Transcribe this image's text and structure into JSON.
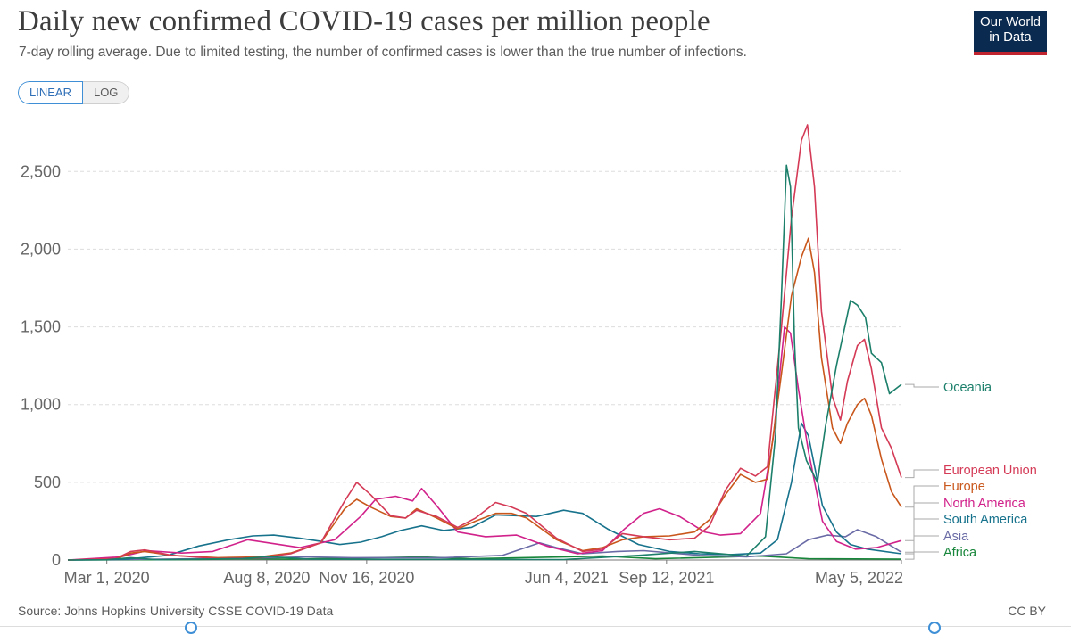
{
  "header": {
    "title": "Daily new confirmed COVID-19 cases per million people",
    "subtitle": "7-day rolling average. Due to limited testing, the number of confirmed cases is lower than the true number of infections."
  },
  "logo": {
    "line1": "Our World",
    "line2": "in Data"
  },
  "controls": {
    "linear_label": "LINEAR",
    "log_label": "LOG",
    "active": "LINEAR"
  },
  "footer": {
    "source": "Source: Johns Hopkins University CSSE COVID-19 Data",
    "license": "CC BY"
  },
  "colors": {
    "grid": "#dddddd",
    "axis": "#777777",
    "accent": "#3e8fd6"
  },
  "chart_data": {
    "type": "line",
    "x_type": "date",
    "xlim": [
      "2020-01-22",
      "2022-05-05"
    ],
    "ylim": [
      0,
      2800
    ],
    "yticks": [
      0,
      500,
      1000,
      1500,
      2000,
      2500
    ],
    "ytick_labels": [
      "0",
      "500",
      "1,000",
      "1,500",
      "2,000",
      "2,500"
    ],
    "xticks": [
      "2020-03-01",
      "2020-08-08",
      "2020-11-16",
      "2021-06-04",
      "2021-09-12",
      "2022-05-05"
    ],
    "xtick_labels": [
      "Mar 1, 2020",
      "Aug 8, 2020",
      "Nov 16, 2020",
      "Jun 4, 2021",
      "Sep 12, 2021",
      "May 5, 2022"
    ],
    "grid": true,
    "legend": "right-end-labels",
    "series": [
      {
        "name": "Oceania",
        "color": "#1b7f6a",
        "points": [
          [
            "2020-01-22",
            0
          ],
          [
            "2020-03-01",
            2
          ],
          [
            "2020-03-25",
            15
          ],
          [
            "2020-04-20",
            2
          ],
          [
            "2020-07-15",
            10
          ],
          [
            "2020-08-10",
            22
          ],
          [
            "2020-09-20",
            5
          ],
          [
            "2021-01-01",
            4
          ],
          [
            "2021-06-01",
            3
          ],
          [
            "2021-08-15",
            30
          ],
          [
            "2021-10-10",
            55
          ],
          [
            "2021-12-01",
            25
          ],
          [
            "2021-12-20",
            150
          ],
          [
            "2021-12-30",
            800
          ],
          [
            "2022-01-05",
            1700
          ],
          [
            "2022-01-10",
            2540
          ],
          [
            "2022-01-14",
            2400
          ],
          [
            "2022-01-18",
            1400
          ],
          [
            "2022-01-22",
            850
          ],
          [
            "2022-01-30",
            640
          ],
          [
            "2022-02-10",
            500
          ],
          [
            "2022-02-18",
            860
          ],
          [
            "2022-03-01",
            1250
          ],
          [
            "2022-03-10",
            1520
          ],
          [
            "2022-03-15",
            1670
          ],
          [
            "2022-03-22",
            1640
          ],
          [
            "2022-03-30",
            1560
          ],
          [
            "2022-04-05",
            1330
          ],
          [
            "2022-04-15",
            1270
          ],
          [
            "2022-04-23",
            1070
          ],
          [
            "2022-05-05",
            1130
          ]
        ]
      },
      {
        "name": "European Union",
        "color": "#d43a56",
        "points": [
          [
            "2020-01-22",
            0
          ],
          [
            "2020-03-10",
            10
          ],
          [
            "2020-03-25",
            55
          ],
          [
            "2020-04-08",
            65
          ],
          [
            "2020-05-05",
            30
          ],
          [
            "2020-06-20",
            10
          ],
          [
            "2020-08-01",
            15
          ],
          [
            "2020-09-01",
            40
          ],
          [
            "2020-10-01",
            110
          ],
          [
            "2020-10-25",
            380
          ],
          [
            "2020-11-06",
            500
          ],
          [
            "2020-11-20",
            420
          ],
          [
            "2020-12-10",
            285
          ],
          [
            "2020-12-25",
            270
          ],
          [
            "2021-01-05",
            320
          ],
          [
            "2021-01-25",
            280
          ],
          [
            "2021-02-15",
            210
          ],
          [
            "2021-03-05",
            270
          ],
          [
            "2021-03-25",
            370
          ],
          [
            "2021-04-10",
            340
          ],
          [
            "2021-04-25",
            300
          ],
          [
            "2021-05-25",
            140
          ],
          [
            "2021-06-20",
            55
          ],
          [
            "2021-07-10",
            70
          ],
          [
            "2021-07-30",
            170
          ],
          [
            "2021-08-20",
            150
          ],
          [
            "2021-09-15",
            130
          ],
          [
            "2021-10-10",
            140
          ],
          [
            "2021-10-25",
            220
          ],
          [
            "2021-11-10",
            450
          ],
          [
            "2021-11-25",
            590
          ],
          [
            "2021-12-10",
            540
          ],
          [
            "2021-12-22",
            600
          ],
          [
            "2022-01-05",
            1500
          ],
          [
            "2022-01-15",
            2200
          ],
          [
            "2022-01-25",
            2700
          ],
          [
            "2022-01-31",
            2800
          ],
          [
            "2022-02-07",
            2400
          ],
          [
            "2022-02-14",
            1600
          ],
          [
            "2022-02-25",
            1050
          ],
          [
            "2022-03-05",
            900
          ],
          [
            "2022-03-12",
            1150
          ],
          [
            "2022-03-22",
            1380
          ],
          [
            "2022-03-29",
            1420
          ],
          [
            "2022-04-05",
            1230
          ],
          [
            "2022-04-15",
            850
          ],
          [
            "2022-04-25",
            720
          ],
          [
            "2022-05-05",
            530
          ]
        ]
      },
      {
        "name": "Europe",
        "color": "#c9571c",
        "points": [
          [
            "2020-01-22",
            0
          ],
          [
            "2020-03-10",
            8
          ],
          [
            "2020-03-25",
            45
          ],
          [
            "2020-04-08",
            55
          ],
          [
            "2020-05-05",
            30
          ],
          [
            "2020-06-20",
            15
          ],
          [
            "2020-08-01",
            20
          ],
          [
            "2020-09-01",
            45
          ],
          [
            "2020-10-01",
            110
          ],
          [
            "2020-10-25",
            330
          ],
          [
            "2020-11-06",
            390
          ],
          [
            "2020-11-20",
            340
          ],
          [
            "2020-12-10",
            280
          ],
          [
            "2020-12-25",
            270
          ],
          [
            "2021-01-05",
            330
          ],
          [
            "2021-01-25",
            270
          ],
          [
            "2021-02-15",
            200
          ],
          [
            "2021-03-05",
            250
          ],
          [
            "2021-03-25",
            300
          ],
          [
            "2021-04-10",
            300
          ],
          [
            "2021-04-25",
            270
          ],
          [
            "2021-05-25",
            130
          ],
          [
            "2021-06-20",
            60
          ],
          [
            "2021-07-10",
            80
          ],
          [
            "2021-07-30",
            130
          ],
          [
            "2021-08-20",
            150
          ],
          [
            "2021-09-15",
            155
          ],
          [
            "2021-10-10",
            180
          ],
          [
            "2021-10-25",
            260
          ],
          [
            "2021-11-10",
            420
          ],
          [
            "2021-11-25",
            550
          ],
          [
            "2021-12-10",
            500
          ],
          [
            "2021-12-22",
            520
          ],
          [
            "2022-01-05",
            1200
          ],
          [
            "2022-01-15",
            1700
          ],
          [
            "2022-01-25",
            1950
          ],
          [
            "2022-02-01",
            2070
          ],
          [
            "2022-02-07",
            1850
          ],
          [
            "2022-02-14",
            1300
          ],
          [
            "2022-02-25",
            850
          ],
          [
            "2022-03-05",
            750
          ],
          [
            "2022-03-12",
            880
          ],
          [
            "2022-03-22",
            1000
          ],
          [
            "2022-03-29",
            1040
          ],
          [
            "2022-04-05",
            930
          ],
          [
            "2022-04-15",
            650
          ],
          [
            "2022-04-25",
            440
          ],
          [
            "2022-05-05",
            340
          ]
        ]
      },
      {
        "name": "North America",
        "color": "#d1218a",
        "points": [
          [
            "2020-01-22",
            0
          ],
          [
            "2020-03-15",
            20
          ],
          [
            "2020-04-10",
            60
          ],
          [
            "2020-05-15",
            45
          ],
          [
            "2020-06-15",
            55
          ],
          [
            "2020-07-20",
            130
          ],
          [
            "2020-08-10",
            110
          ],
          [
            "2020-09-10",
            80
          ],
          [
            "2020-10-15",
            130
          ],
          [
            "2020-11-10",
            280
          ],
          [
            "2020-11-25",
            390
          ],
          [
            "2020-12-15",
            410
          ],
          [
            "2021-01-01",
            380
          ],
          [
            "2021-01-10",
            460
          ],
          [
            "2021-01-25",
            350
          ],
          [
            "2021-02-15",
            180
          ],
          [
            "2021-03-15",
            150
          ],
          [
            "2021-04-15",
            160
          ],
          [
            "2021-05-15",
            90
          ],
          [
            "2021-06-15",
            40
          ],
          [
            "2021-07-10",
            60
          ],
          [
            "2021-08-01",
            200
          ],
          [
            "2021-08-20",
            300
          ],
          [
            "2021-09-05",
            330
          ],
          [
            "2021-09-25",
            280
          ],
          [
            "2021-10-20",
            180
          ],
          [
            "2021-11-05",
            160
          ],
          [
            "2021-11-25",
            170
          ],
          [
            "2021-12-15",
            300
          ],
          [
            "2021-12-28",
            800
          ],
          [
            "2022-01-08",
            1500
          ],
          [
            "2022-01-14",
            1460
          ],
          [
            "2022-01-22",
            1100
          ],
          [
            "2022-02-01",
            700
          ],
          [
            "2022-02-15",
            250
          ],
          [
            "2022-03-01",
            120
          ],
          [
            "2022-03-20",
            70
          ],
          [
            "2022-04-10",
            80
          ],
          [
            "2022-05-05",
            125
          ]
        ]
      },
      {
        "name": "South America",
        "color": "#17728c",
        "points": [
          [
            "2020-01-22",
            0
          ],
          [
            "2020-03-20",
            5
          ],
          [
            "2020-05-01",
            30
          ],
          [
            "2020-06-01",
            90
          ],
          [
            "2020-07-01",
            130
          ],
          [
            "2020-07-25",
            155
          ],
          [
            "2020-08-15",
            160
          ],
          [
            "2020-09-10",
            140
          ],
          [
            "2020-10-01",
            120
          ],
          [
            "2020-10-20",
            100
          ],
          [
            "2020-11-10",
            115
          ],
          [
            "2020-12-01",
            150
          ],
          [
            "2020-12-20",
            190
          ],
          [
            "2021-01-10",
            220
          ],
          [
            "2021-02-01",
            190
          ],
          [
            "2021-03-01",
            210
          ],
          [
            "2021-03-25",
            290
          ],
          [
            "2021-04-15",
            285
          ],
          [
            "2021-05-05",
            280
          ],
          [
            "2021-06-01",
            320
          ],
          [
            "2021-06-20",
            300
          ],
          [
            "2021-07-15",
            200
          ],
          [
            "2021-08-15",
            100
          ],
          [
            "2021-09-15",
            55
          ],
          [
            "2021-10-15",
            40
          ],
          [
            "2021-11-15",
            35
          ],
          [
            "2021-12-15",
            45
          ],
          [
            "2022-01-01",
            130
          ],
          [
            "2022-01-15",
            500
          ],
          [
            "2022-01-25",
            880
          ],
          [
            "2022-02-01",
            800
          ],
          [
            "2022-02-15",
            350
          ],
          [
            "2022-03-01",
            180
          ],
          [
            "2022-03-15",
            100
          ],
          [
            "2022-04-01",
            70
          ],
          [
            "2022-05-05",
            40
          ]
        ]
      },
      {
        "name": "Asia",
        "color": "#6a6ba6",
        "points": [
          [
            "2020-01-22",
            0
          ],
          [
            "2020-03-01",
            2
          ],
          [
            "2020-06-01",
            8
          ],
          [
            "2020-08-15",
            15
          ],
          [
            "2020-09-15",
            20
          ],
          [
            "2020-11-01",
            15
          ],
          [
            "2021-02-01",
            15
          ],
          [
            "2021-04-01",
            30
          ],
          [
            "2021-05-08",
            110
          ],
          [
            "2021-05-25",
            80
          ],
          [
            "2021-06-20",
            40
          ],
          [
            "2021-07-25",
            55
          ],
          [
            "2021-08-20",
            60
          ],
          [
            "2021-10-15",
            30
          ],
          [
            "2021-12-01",
            20
          ],
          [
            "2022-01-10",
            40
          ],
          [
            "2022-02-01",
            130
          ],
          [
            "2022-02-20",
            160
          ],
          [
            "2022-03-10",
            150
          ],
          [
            "2022-03-22",
            195
          ],
          [
            "2022-04-10",
            150
          ],
          [
            "2022-05-05",
            50
          ]
        ]
      },
      {
        "name": "Africa",
        "color": "#17863a",
        "points": [
          [
            "2020-01-22",
            0
          ],
          [
            "2020-06-01",
            3
          ],
          [
            "2020-07-20",
            8
          ],
          [
            "2020-09-01",
            5
          ],
          [
            "2021-01-10",
            20
          ],
          [
            "2021-03-01",
            8
          ],
          [
            "2021-07-10",
            25
          ],
          [
            "2021-09-01",
            8
          ],
          [
            "2021-12-15",
            25
          ],
          [
            "2022-02-01",
            8
          ],
          [
            "2022-05-05",
            5
          ]
        ]
      }
    ]
  }
}
